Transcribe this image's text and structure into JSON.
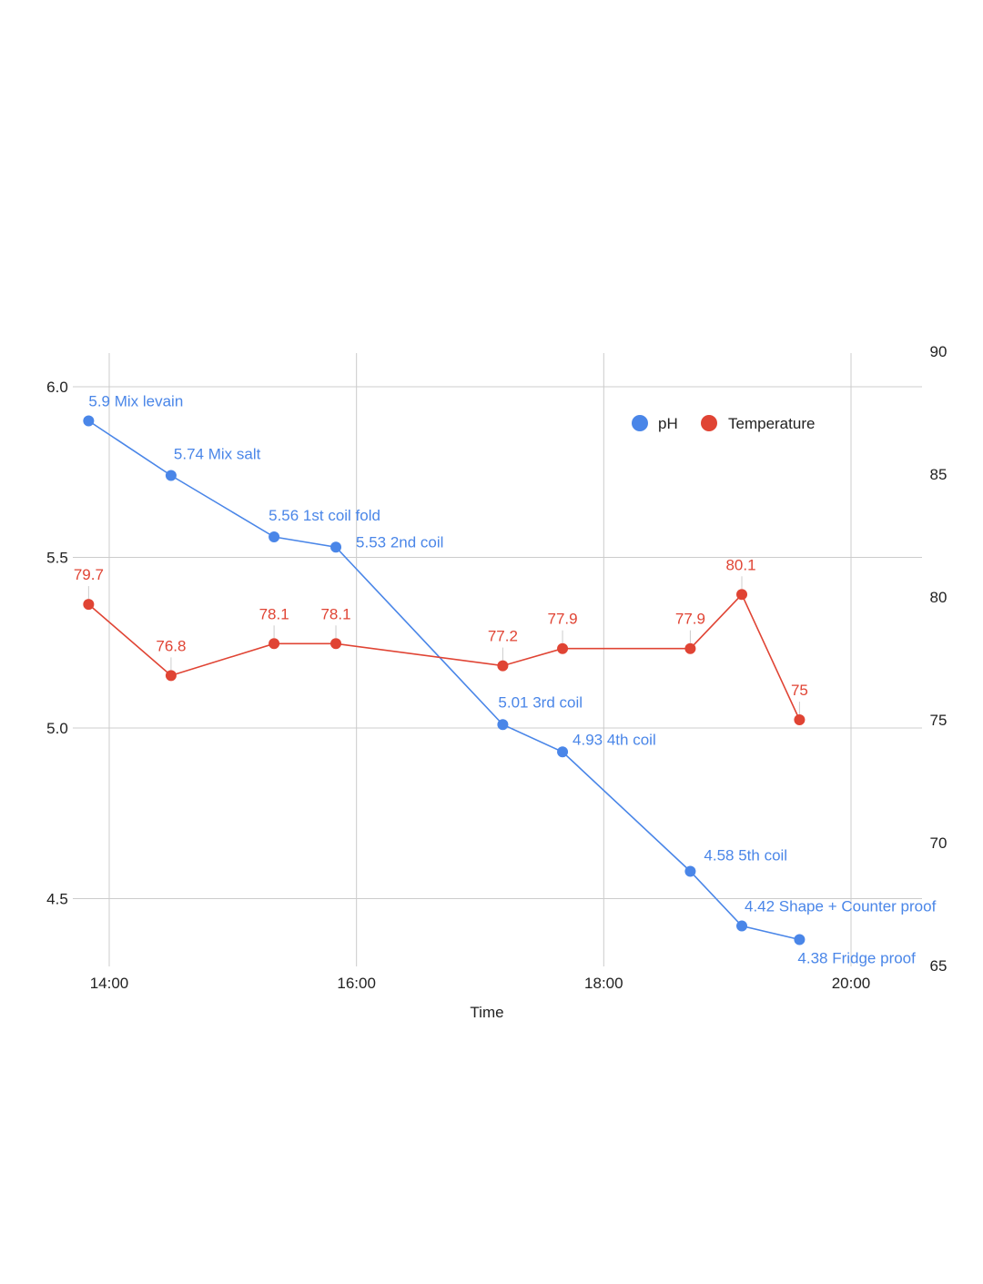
{
  "chart_data": {
    "type": "line",
    "xlabel": "Time",
    "x_ticks": [
      "14:00",
      "16:00",
      "18:00",
      "20:00"
    ],
    "x_range_minutes": [
      825,
      1230
    ],
    "y_left": {
      "ticks": [
        "6.0",
        "5.5",
        "5.0",
        "4.5"
      ],
      "range": [
        4.35,
        6.1
      ]
    },
    "y_right": {
      "ticks": [
        "90",
        "85",
        "80",
        "75",
        "70",
        "65"
      ],
      "range": [
        65,
        90
      ]
    },
    "grid": true,
    "legend_position": "top-right",
    "series": [
      {
        "name": "pH",
        "axis": "left",
        "color": "#4a86e8",
        "points": [
          {
            "x": "13:50",
            "y": 5.9,
            "label": "5.9 Mix levain"
          },
          {
            "x": "14:30",
            "y": 5.74,
            "label": "5.74 Mix salt"
          },
          {
            "x": "15:20",
            "y": 5.56,
            "label": "5.56 1st coil fold"
          },
          {
            "x": "15:50",
            "y": 5.53,
            "label": "5.53 2nd coil"
          },
          {
            "x": "17:11",
            "y": 5.01,
            "label": "5.01 3rd coil"
          },
          {
            "x": "17:40",
            "y": 4.93,
            "label": "4.93 4th coil"
          },
          {
            "x": "18:42",
            "y": 4.58,
            "label": "4.58 5th coil"
          },
          {
            "x": "19:07",
            "y": 4.42,
            "label": "4.42 Shape + Counter proof"
          },
          {
            "x": "19:35",
            "y": 4.38,
            "label": "4.38 Fridge proof"
          }
        ]
      },
      {
        "name": "Temperature",
        "axis": "right",
        "color": "#e04434",
        "points": [
          {
            "x": "13:50",
            "y": 79.7,
            "label": "79.7"
          },
          {
            "x": "14:30",
            "y": 76.8,
            "label": "76.8"
          },
          {
            "x": "15:20",
            "y": 78.1,
            "label": "78.1"
          },
          {
            "x": "15:50",
            "y": 78.1,
            "label": "78.1"
          },
          {
            "x": "17:11",
            "y": 77.2,
            "label": "77.2"
          },
          {
            "x": "17:40",
            "y": 77.9,
            "label": "77.9"
          },
          {
            "x": "18:42",
            "y": 77.9,
            "label": "77.9"
          },
          {
            "x": "19:07",
            "y": 80.1,
            "label": "80.1"
          },
          {
            "x": "19:35",
            "y": 75,
            "label": "75"
          }
        ]
      }
    ]
  }
}
